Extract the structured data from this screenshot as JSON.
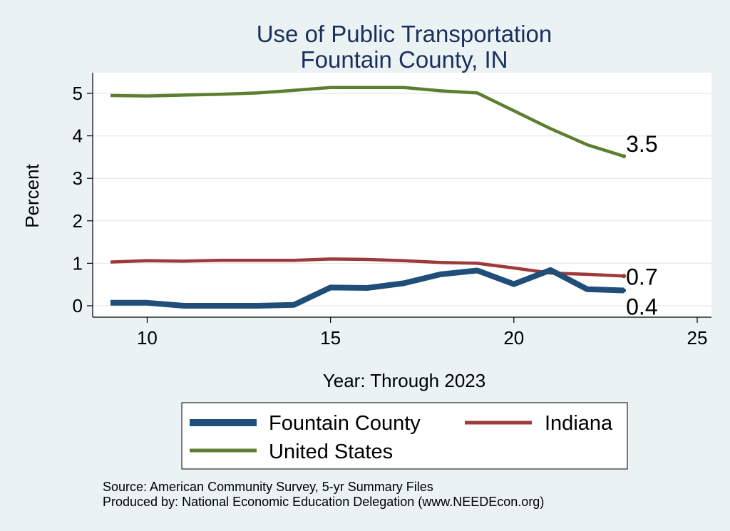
{
  "chart_data": {
    "type": "line",
    "title": [
      "Use of Public Transportation",
      "Fountain County, IN"
    ],
    "xlabel": "Year: Through 2023",
    "ylabel": "Percent",
    "xlim": [
      9,
      25
    ],
    "ylim": [
      0,
      5
    ],
    "xticks": [
      10,
      15,
      20,
      25
    ],
    "yticks": [
      0,
      1,
      2,
      3,
      4,
      5
    ],
    "grid": "horizontal",
    "legend": "bottom",
    "series": [
      {
        "name": "Fountain County",
        "color": "#1f4e79",
        "end_label": "0.4",
        "x": [
          9,
          10,
          11,
          12,
          13,
          14,
          15,
          16,
          17,
          18,
          19,
          20,
          21,
          22,
          23
        ],
        "y": [
          0.07,
          0.07,
          0.0,
          0.0,
          0.0,
          0.02,
          0.43,
          0.42,
          0.53,
          0.74,
          0.83,
          0.51,
          0.84,
          0.39,
          0.36
        ]
      },
      {
        "name": "Indiana",
        "color": "#9e3a3a",
        "end_label": "0.7",
        "x": [
          9,
          10,
          11,
          12,
          13,
          14,
          15,
          16,
          17,
          18,
          19,
          20,
          21,
          22,
          23
        ],
        "y": [
          1.03,
          1.06,
          1.05,
          1.07,
          1.07,
          1.07,
          1.1,
          1.09,
          1.06,
          1.02,
          1.0,
          0.89,
          0.77,
          0.74,
          0.7
        ]
      },
      {
        "name": "United States",
        "color": "#5b7f2e",
        "end_label": "3.5",
        "x": [
          9,
          10,
          11,
          12,
          13,
          14,
          15,
          16,
          17,
          18,
          19,
          20,
          21,
          22,
          23
        ],
        "y": [
          4.95,
          4.94,
          4.96,
          4.98,
          5.01,
          5.07,
          5.14,
          5.14,
          5.14,
          5.06,
          5.01,
          4.59,
          4.17,
          3.79,
          3.52
        ]
      }
    ]
  },
  "notes": {
    "source": "Source: American Community Survey, 5-yr Summary Files",
    "produced": "Produced by: National Economic Education Delegation (www.NEEDEcon.org)"
  }
}
